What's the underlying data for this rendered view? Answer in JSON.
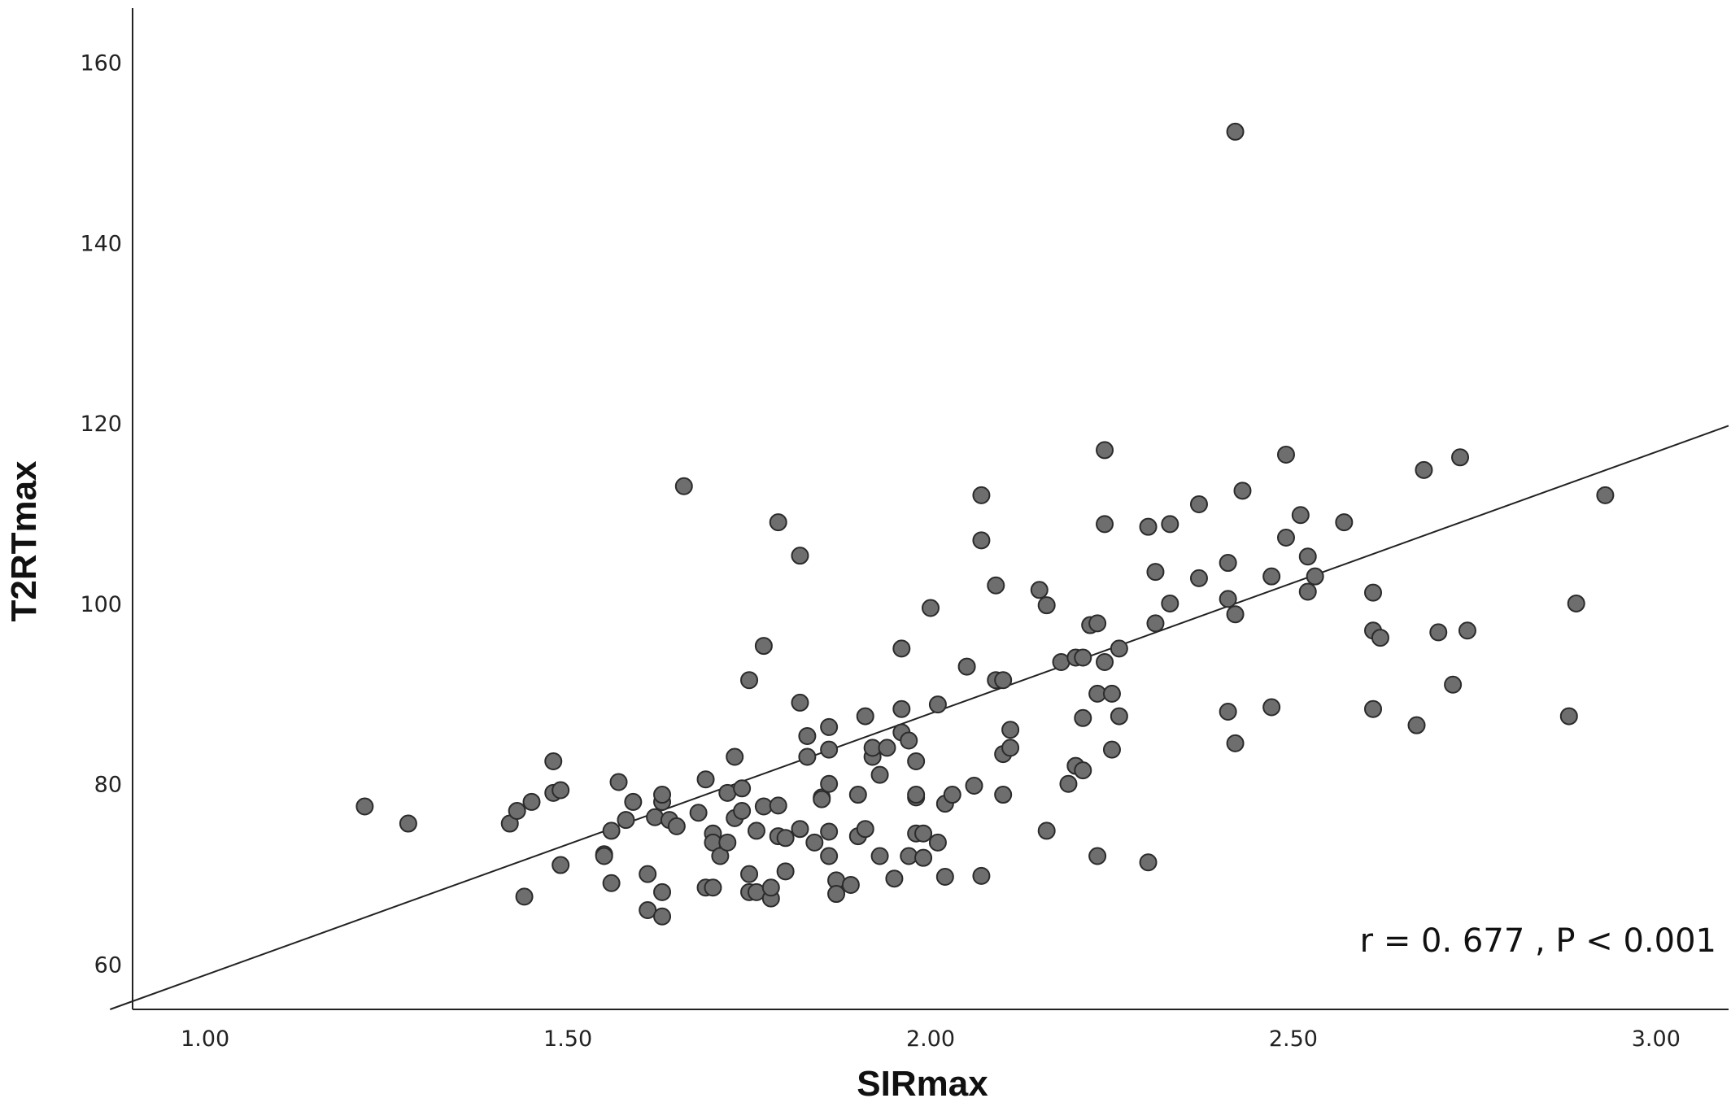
{
  "chart_data": {
    "type": "scatter",
    "title": "",
    "xlabel": "SIRmax",
    "ylabel": "T2RTmax",
    "xlim": [
      0.9,
      3.1
    ],
    "ylim": [
      55,
      166
    ],
    "x_ticks": [
      1.0,
      1.5,
      2.0,
      2.5,
      3.0
    ],
    "x_tick_labels": [
      "1.00",
      "1.50",
      "2.00",
      "2.50",
      "3.00"
    ],
    "y_ticks": [
      60,
      80,
      100,
      120,
      140,
      160
    ],
    "y_tick_labels": [
      "60",
      "80",
      "100",
      "120",
      "140",
      "160"
    ],
    "grid": false,
    "annotation": "r = 0. 677 , P < 0.001",
    "marker_color": "#6e6e6e",
    "marker_edge_color": "#2b2b2b",
    "fit_line": {
      "slope": 29.0,
      "intercept": 29.8,
      "color": "#222222"
    },
    "points": [
      [
        1.22,
        77.5
      ],
      [
        1.28,
        75.6
      ],
      [
        1.42,
        75.6
      ],
      [
        1.43,
        77.0
      ],
      [
        1.45,
        78.0
      ],
      [
        1.44,
        67.5
      ],
      [
        1.48,
        82.5
      ],
      [
        1.48,
        79.0
      ],
      [
        1.49,
        79.3
      ],
      [
        1.49,
        71.0
      ],
      [
        1.55,
        72.2
      ],
      [
        1.55,
        72.0
      ],
      [
        1.56,
        74.8
      ],
      [
        1.56,
        69.0
      ],
      [
        1.57,
        80.2
      ],
      [
        1.58,
        76.0
      ],
      [
        1.59,
        78.0
      ],
      [
        1.61,
        70.0
      ],
      [
        1.61,
        66.0
      ],
      [
        1.62,
        76.3
      ],
      [
        1.63,
        78.0
      ],
      [
        1.63,
        78.8
      ],
      [
        1.63,
        68.0
      ],
      [
        1.63,
        65.3
      ],
      [
        1.64,
        76.0
      ],
      [
        1.65,
        75.3
      ],
      [
        1.66,
        113.0
      ],
      [
        1.68,
        76.8
      ],
      [
        1.69,
        80.5
      ],
      [
        1.69,
        68.5
      ],
      [
        1.7,
        74.5
      ],
      [
        1.7,
        73.5
      ],
      [
        1.7,
        68.5
      ],
      [
        1.71,
        72.0
      ],
      [
        1.72,
        73.5
      ],
      [
        1.72,
        79.0
      ],
      [
        1.73,
        76.2
      ],
      [
        1.73,
        83.0
      ],
      [
        1.74,
        79.5
      ],
      [
        1.74,
        77.0
      ],
      [
        1.75,
        91.5
      ],
      [
        1.75,
        70.0
      ],
      [
        1.75,
        68.0
      ],
      [
        1.76,
        74.8
      ],
      [
        1.76,
        68.0
      ],
      [
        1.77,
        95.3
      ],
      [
        1.77,
        77.5
      ],
      [
        1.78,
        67.3
      ],
      [
        1.78,
        68.5
      ],
      [
        1.79,
        109.0
      ],
      [
        1.79,
        77.6
      ],
      [
        1.79,
        74.2
      ],
      [
        1.8,
        74.0
      ],
      [
        1.8,
        70.3
      ],
      [
        1.82,
        105.3
      ],
      [
        1.82,
        89.0
      ],
      [
        1.82,
        75.0
      ],
      [
        1.83,
        85.3
      ],
      [
        1.83,
        83.0
      ],
      [
        1.84,
        73.5
      ],
      [
        1.85,
        78.5
      ],
      [
        1.85,
        78.3
      ],
      [
        1.86,
        86.3
      ],
      [
        1.86,
        83.8
      ],
      [
        1.86,
        80.0
      ],
      [
        1.86,
        74.7
      ],
      [
        1.86,
        72.0
      ],
      [
        1.87,
        69.3
      ],
      [
        1.87,
        67.8
      ],
      [
        1.89,
        68.8
      ],
      [
        1.9,
        74.2
      ],
      [
        1.9,
        78.8
      ],
      [
        1.91,
        87.5
      ],
      [
        1.91,
        75.0
      ],
      [
        1.92,
        83.0
      ],
      [
        1.92,
        84.0
      ],
      [
        1.93,
        81.0
      ],
      [
        1.93,
        72.0
      ],
      [
        1.94,
        84.0
      ],
      [
        1.95,
        69.5
      ],
      [
        1.96,
        95.0
      ],
      [
        1.96,
        88.3
      ],
      [
        1.96,
        85.7
      ],
      [
        1.97,
        84.8
      ],
      [
        1.97,
        72.0
      ],
      [
        1.98,
        82.5
      ],
      [
        1.98,
        78.5
      ],
      [
        1.98,
        78.8
      ],
      [
        1.98,
        74.5
      ],
      [
        1.99,
        74.5
      ],
      [
        1.99,
        71.8
      ],
      [
        2.0,
        99.5
      ],
      [
        2.01,
        88.8
      ],
      [
        2.01,
        73.5
      ],
      [
        2.02,
        69.7
      ],
      [
        2.02,
        77.8
      ],
      [
        2.03,
        78.8
      ],
      [
        2.05,
        93.0
      ],
      [
        2.06,
        79.8
      ],
      [
        2.07,
        69.8
      ],
      [
        2.07,
        112.0
      ],
      [
        2.07,
        107.0
      ],
      [
        2.09,
        102.0
      ],
      [
        2.09,
        91.5
      ],
      [
        2.1,
        91.5
      ],
      [
        2.1,
        78.8
      ],
      [
        2.1,
        83.3
      ],
      [
        2.11,
        84.0
      ],
      [
        2.11,
        86.0
      ],
      [
        2.15,
        101.5
      ],
      [
        2.16,
        99.8
      ],
      [
        2.16,
        74.8
      ],
      [
        2.18,
        93.5
      ],
      [
        2.19,
        80.0
      ],
      [
        2.2,
        82.0
      ],
      [
        2.2,
        94.0
      ],
      [
        2.21,
        94.0
      ],
      [
        2.21,
        87.3
      ],
      [
        2.21,
        81.5
      ],
      [
        2.22,
        97.6
      ],
      [
        2.23,
        97.8
      ],
      [
        2.23,
        90.0
      ],
      [
        2.23,
        72.0
      ],
      [
        2.24,
        93.5
      ],
      [
        2.24,
        108.8
      ],
      [
        2.24,
        117.0
      ],
      [
        2.25,
        90.0
      ],
      [
        2.25,
        83.8
      ],
      [
        2.26,
        95.0
      ],
      [
        2.26,
        87.5
      ],
      [
        2.3,
        108.5
      ],
      [
        2.3,
        71.3
      ],
      [
        2.31,
        103.5
      ],
      [
        2.31,
        97.8
      ],
      [
        2.33,
        108.8
      ],
      [
        2.33,
        100.0
      ],
      [
        2.37,
        111.0
      ],
      [
        2.37,
        102.8
      ],
      [
        2.41,
        104.5
      ],
      [
        2.41,
        100.5
      ],
      [
        2.41,
        88.0
      ],
      [
        2.42,
        98.8
      ],
      [
        2.42,
        84.5
      ],
      [
        2.42,
        152.3
      ],
      [
        2.43,
        112.5
      ],
      [
        2.47,
        103.0
      ],
      [
        2.47,
        88.5
      ],
      [
        2.49,
        116.5
      ],
      [
        2.49,
        107.3
      ],
      [
        2.51,
        109.8
      ],
      [
        2.52,
        105.2
      ],
      [
        2.52,
        101.3
      ],
      [
        2.53,
        103.0
      ],
      [
        2.57,
        109.0
      ],
      [
        2.61,
        101.2
      ],
      [
        2.61,
        97.0
      ],
      [
        2.61,
        88.3
      ],
      [
        2.62,
        96.2
      ],
      [
        2.67,
        86.5
      ],
      [
        2.68,
        114.8
      ],
      [
        2.7,
        96.8
      ],
      [
        2.72,
        91.0
      ],
      [
        2.73,
        116.2
      ],
      [
        2.74,
        97.0
      ],
      [
        2.88,
        87.5
      ],
      [
        2.89,
        100.0
      ],
      [
        2.93,
        112.0
      ]
    ]
  }
}
